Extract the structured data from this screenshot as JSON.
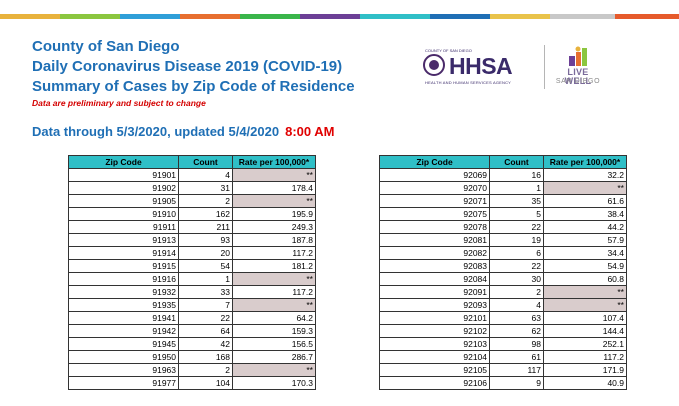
{
  "stripes": [
    {
      "color": "#e8b23c"
    },
    {
      "color": "#8bc63f"
    },
    {
      "color": "#2f9fd8"
    },
    {
      "color": "#e76f2f"
    },
    {
      "color": "#3ab54a"
    },
    {
      "color": "#6c3f96"
    },
    {
      "color": "#2fbfc7"
    },
    {
      "color": "#1f6fb5"
    },
    {
      "color": "#e9c34a"
    },
    {
      "color": "#c8c8c8"
    },
    {
      "color": "#e65a2b"
    }
  ],
  "header": {
    "title_line1": "County of San Diego",
    "title_line2": "Daily Coronavirus Disease 2019 (COVID-19)",
    "title_line3": "Summary of Cases by Zip Code of Residence",
    "disclaimer": "Data are preliminary and subject to change",
    "data_through": "Data through 5/3/2020, updated 5/4/2020",
    "update_time": "8:00 AM"
  },
  "logos": {
    "hhsa_top": "COUNTY OF SAN DIEGO",
    "hhsa": "HHSA",
    "hhsa_sub": "HEALTH AND HUMAN SERVICES AGENCY",
    "live_well_line1": "LIVE WELL",
    "live_well_line2": "SAN DIEGO"
  },
  "columns": [
    "Zip Code",
    "Count",
    "Rate per 100,000*"
  ],
  "left_rows": [
    {
      "zip": "91901",
      "count": "4",
      "rate": "**"
    },
    {
      "zip": "91902",
      "count": "31",
      "rate": "178.4"
    },
    {
      "zip": "91905",
      "count": "2",
      "rate": "**"
    },
    {
      "zip": "91910",
      "count": "162",
      "rate": "195.9"
    },
    {
      "zip": "91911",
      "count": "211",
      "rate": "249.3"
    },
    {
      "zip": "91913",
      "count": "93",
      "rate": "187.8"
    },
    {
      "zip": "91914",
      "count": "20",
      "rate": "117.2"
    },
    {
      "zip": "91915",
      "count": "54",
      "rate": "181.2"
    },
    {
      "zip": "91916",
      "count": "1",
      "rate": "**"
    },
    {
      "zip": "91932",
      "count": "33",
      "rate": "117.2"
    },
    {
      "zip": "91935",
      "count": "7",
      "rate": "**"
    },
    {
      "zip": "91941",
      "count": "22",
      "rate": "64.2"
    },
    {
      "zip": "91942",
      "count": "64",
      "rate": "159.3"
    },
    {
      "zip": "91945",
      "count": "42",
      "rate": "156.5"
    },
    {
      "zip": "91950",
      "count": "168",
      "rate": "286.7"
    },
    {
      "zip": "91963",
      "count": "2",
      "rate": "**"
    },
    {
      "zip": "91977",
      "count": "104",
      "rate": "170.3"
    }
  ],
  "right_rows": [
    {
      "zip": "92069",
      "count": "16",
      "rate": "32.2"
    },
    {
      "zip": "92070",
      "count": "1",
      "rate": "**"
    },
    {
      "zip": "92071",
      "count": "35",
      "rate": "61.6"
    },
    {
      "zip": "92075",
      "count": "5",
      "rate": "38.4"
    },
    {
      "zip": "92078",
      "count": "22",
      "rate": "44.2"
    },
    {
      "zip": "92081",
      "count": "19",
      "rate": "57.9"
    },
    {
      "zip": "92082",
      "count": "6",
      "rate": "34.4"
    },
    {
      "zip": "92083",
      "count": "22",
      "rate": "54.9"
    },
    {
      "zip": "92084",
      "count": "30",
      "rate": "60.8"
    },
    {
      "zip": "92091",
      "count": "2",
      "rate": "**"
    },
    {
      "zip": "92093",
      "count": "4",
      "rate": "**"
    },
    {
      "zip": "92101",
      "count": "63",
      "rate": "107.4"
    },
    {
      "zip": "92102",
      "count": "62",
      "rate": "144.4"
    },
    {
      "zip": "92103",
      "count": "98",
      "rate": "252.1"
    },
    {
      "zip": "92104",
      "count": "61",
      "rate": "117.2"
    },
    {
      "zip": "92105",
      "count": "117",
      "rate": "171.9"
    },
    {
      "zip": "92106",
      "count": "9",
      "rate": "40.9"
    }
  ]
}
